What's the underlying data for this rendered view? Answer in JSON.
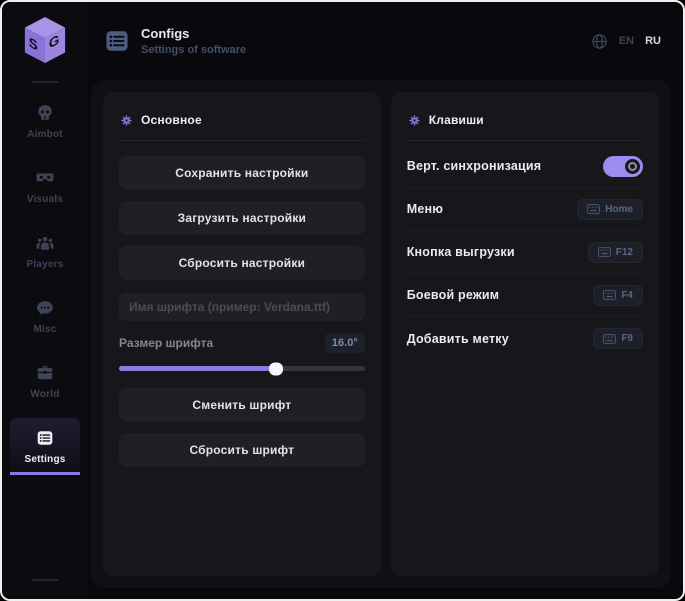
{
  "header": {
    "title": "Configs",
    "subtitle": "Settings of software",
    "lang_en": "EN",
    "lang_ru": "RU"
  },
  "sidebar": {
    "logo": "SG-cube-logo",
    "items": [
      {
        "label": "Aimbot",
        "icon": "skull-icon",
        "active": false
      },
      {
        "label": "Visuals",
        "icon": "vr-goggles-icon",
        "active": false
      },
      {
        "label": "Players",
        "icon": "players-icon",
        "active": false
      },
      {
        "label": "Misc",
        "icon": "chat-icon",
        "active": false
      },
      {
        "label": "World",
        "icon": "briefcase-icon",
        "active": false
      },
      {
        "label": "Settings",
        "icon": "list-icon",
        "active": true
      }
    ]
  },
  "main_panel": {
    "title": "Основное",
    "buttons": [
      "Сохранить настройки",
      "Загрузить настройки",
      "Сбросить настройки"
    ],
    "font_input_placeholder": "Имя шрифта (пример: Verdana.ttf)",
    "font_size_label": "Размер шрифта",
    "font_size_value": "16.0°",
    "slider_percent": 64,
    "font_buttons": [
      "Сменить шрифт",
      "Сбросить шрифт"
    ]
  },
  "keys_panel": {
    "title": "Клавиши",
    "rows": [
      {
        "label": "Верт. синхронизация",
        "type": "toggle",
        "on": true
      },
      {
        "label": "Меню",
        "type": "key",
        "key": "Home"
      },
      {
        "label": "Кнопка выгрузки",
        "type": "key",
        "key": "F12"
      },
      {
        "label": "Боевой режим",
        "type": "key",
        "key": "F4"
      },
      {
        "label": "Добавить метку",
        "type": "key",
        "key": "F9"
      }
    ]
  },
  "colors": {
    "accent": "#8b76dd",
    "toggle_on": "#9d8cee",
    "slider_fill": "#8d7ce0",
    "panel_bg": "#17171b",
    "window_bg": "#09090d"
  }
}
